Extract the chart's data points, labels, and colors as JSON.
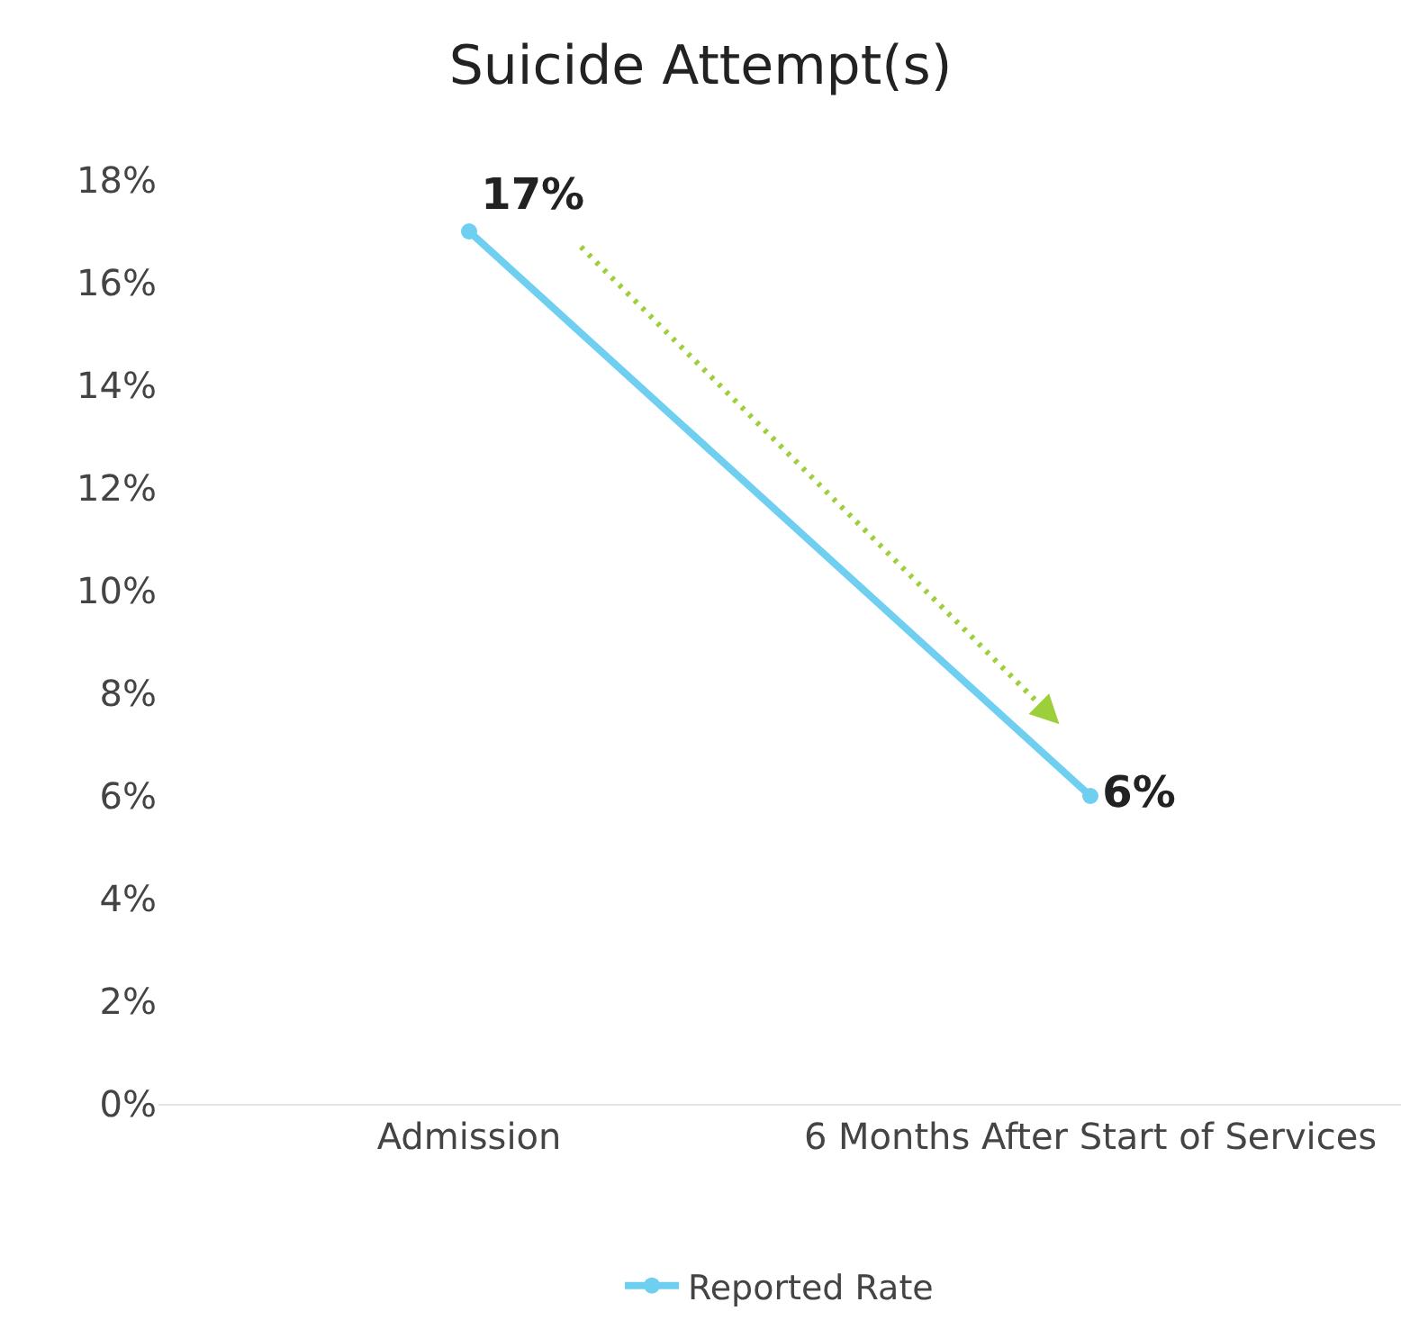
{
  "chart_data": {
    "type": "line",
    "title": "Suicide Attempt(s)",
    "categories": [
      "Admission",
      "6 Months After Start of Services"
    ],
    "series": [
      {
        "name": "Reported Rate",
        "color": "#6ecff0",
        "values": [
          17,
          6
        ],
        "value_labels": [
          "17%",
          "6%"
        ]
      }
    ],
    "ylim": [
      0,
      18
    ],
    "yticks": [
      {
        "value": 0,
        "label": "0%"
      },
      {
        "value": 2,
        "label": "2%"
      },
      {
        "value": 4,
        "label": "4%"
      },
      {
        "value": 6,
        "label": "6%"
      },
      {
        "value": 8,
        "label": "8%"
      },
      {
        "value": 10,
        "label": "10%"
      },
      {
        "value": 12,
        "label": "12%"
      },
      {
        "value": 14,
        "label": "14%"
      },
      {
        "value": 16,
        "label": "16%"
      },
      {
        "value": 18,
        "label": "18%"
      }
    ],
    "grid": false,
    "legend": "bottom",
    "marker": "circle",
    "line_style": "solid"
  }
}
